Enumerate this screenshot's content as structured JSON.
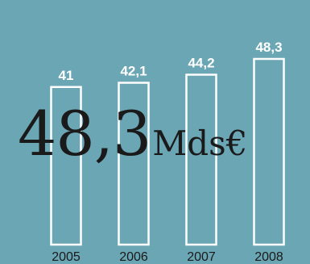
{
  "headline": {
    "number": "48,3",
    "unit": "Mds€"
  },
  "colors": {
    "background": "#6ba6b4",
    "bar_outline": "#ffffff",
    "value_text": "#ffffff",
    "year_text": "#1a1a1a"
  },
  "chart_data": {
    "type": "bar",
    "categories": [
      "2005",
      "2006",
      "2007",
      "2008"
    ],
    "values": [
      41,
      42.1,
      44.2,
      48.3
    ],
    "value_labels": [
      "41",
      "42,1",
      "44,2",
      "48,3"
    ],
    "title": "",
    "xlabel": "",
    "ylabel": "",
    "bar_style": "outline",
    "grid": false,
    "legend": "none"
  }
}
